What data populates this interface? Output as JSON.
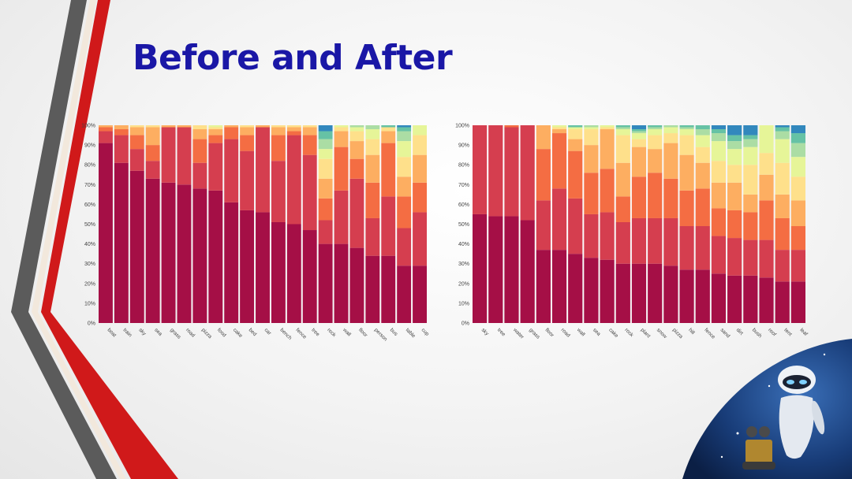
{
  "slide": {
    "title": "Before and After",
    "title_color": "#1a17a6",
    "decoration": "robot-illustration"
  },
  "palette": [
    "#a50f46",
    "#d53e4f",
    "#f46d43",
    "#fdae61",
    "#fee08b",
    "#e6f598",
    "#abdda4",
    "#66c2a5",
    "#3288bd"
  ],
  "chart_data": [
    {
      "type": "bar",
      "stacked": true,
      "title": "",
      "xlabel": "",
      "ylabel": "",
      "ylim": [
        0,
        100
      ],
      "yticks": [
        "0%",
        "10%",
        "20%",
        "30%",
        "40%",
        "50%",
        "60%",
        "70%",
        "80%",
        "90%",
        "100%"
      ],
      "categories": [
        "boat",
        "train",
        "sky",
        "sea",
        "grass",
        "road",
        "pizza",
        "food",
        "cake",
        "bed",
        "car",
        "bench",
        "fence",
        "tree",
        "rock",
        "wall",
        "floor",
        "person",
        "bus",
        "table",
        "cup"
      ],
      "series": [
        {
          "values": [
            91,
            81,
            77,
            73,
            71,
            70,
            68,
            67,
            61,
            57,
            56,
            51,
            50,
            47,
            40,
            40,
            38,
            34,
            34,
            29,
            29
          ]
        },
        {
          "values": [
            6,
            14,
            11,
            9,
            28,
            29,
            13,
            24,
            32,
            30,
            43,
            31,
            45,
            38,
            12,
            27,
            35,
            19,
            30,
            19,
            27
          ]
        },
        {
          "values": [
            2,
            3,
            7,
            8,
            0,
            0,
            12,
            4,
            6,
            8,
            0,
            13,
            2,
            10,
            11,
            22,
            10,
            18,
            27,
            16,
            15
          ]
        },
        {
          "values": [
            1,
            2,
            4,
            9,
            1,
            1,
            5,
            3,
            1,
            4,
            1,
            4,
            2,
            4,
            10,
            8,
            9,
            14,
            6,
            10,
            14
          ]
        },
        {
          "values": [
            0,
            0,
            1,
            1,
            0,
            0,
            2,
            1,
            0,
            1,
            0,
            1,
            1,
            1,
            10,
            2,
            5,
            8,
            2,
            10,
            10
          ]
        },
        {
          "values": [
            0,
            0,
            0,
            0,
            0,
            0,
            0,
            1,
            0,
            0,
            0,
            0,
            0,
            0,
            5,
            1,
            2,
            5,
            0,
            8,
            5
          ]
        },
        {
          "values": [
            0,
            0,
            0,
            0,
            0,
            0,
            0,
            0,
            0,
            0,
            0,
            0,
            0,
            0,
            5,
            0,
            1,
            2,
            0,
            5,
            0
          ]
        },
        {
          "values": [
            0,
            0,
            0,
            0,
            0,
            0,
            0,
            0,
            0,
            0,
            0,
            0,
            0,
            0,
            4,
            0,
            0,
            0,
            1,
            2,
            0
          ]
        },
        {
          "values": [
            0,
            0,
            0,
            0,
            0,
            0,
            0,
            0,
            0,
            0,
            0,
            0,
            0,
            0,
            3,
            0,
            0,
            0,
            0,
            1,
            0
          ]
        }
      ]
    },
    {
      "type": "bar",
      "stacked": true,
      "title": "",
      "xlabel": "",
      "ylabel": "",
      "ylim": [
        0,
        100
      ],
      "yticks": [
        "0%",
        "10%",
        "20%",
        "30%",
        "40%",
        "50%",
        "60%",
        "70%",
        "80%",
        "90%",
        "100%"
      ],
      "categories": [
        "sky",
        "tree",
        "water",
        "grass",
        "floor",
        "road",
        "wall",
        "sea",
        "cake",
        "rock",
        "plant",
        "snow",
        "pizza",
        "hill",
        "fence",
        "sand",
        "dirt",
        "bush",
        "roof",
        "tent",
        "leaf"
      ],
      "series": [
        {
          "values": [
            55,
            54,
            54,
            52,
            37,
            37,
            35,
            33,
            32,
            30,
            30,
            30,
            29,
            27,
            27,
            25,
            24,
            24,
            23,
            21,
            21
          ]
        },
        {
          "values": [
            45,
            46,
            45,
            48,
            25,
            31,
            28,
            22,
            24,
            21,
            23,
            23,
            24,
            22,
            22,
            19,
            19,
            18,
            19,
            16,
            16
          ]
        },
        {
          "values": [
            0,
            0,
            1,
            0,
            26,
            28,
            24,
            21,
            22,
            13,
            21,
            23,
            20,
            18,
            19,
            14,
            14,
            14,
            20,
            16,
            12
          ]
        },
        {
          "values": [
            0,
            0,
            0,
            0,
            12,
            2,
            6,
            14,
            20,
            17,
            15,
            12,
            18,
            18,
            13,
            13,
            14,
            9,
            13,
            12,
            13
          ]
        },
        {
          "values": [
            0,
            0,
            0,
            0,
            0,
            1,
            5,
            8,
            1,
            14,
            4,
            7,
            5,
            10,
            8,
            11,
            9,
            15,
            11,
            16,
            12
          ]
        },
        {
          "values": [
            0,
            0,
            0,
            0,
            0,
            1,
            1,
            1,
            1,
            3,
            3,
            3,
            3,
            3,
            6,
            10,
            8,
            9,
            14,
            12,
            10
          ]
        },
        {
          "values": [
            0,
            0,
            0,
            0,
            0,
            0,
            0,
            1,
            0,
            1,
            1,
            1,
            1,
            1,
            3,
            4,
            4,
            4,
            0,
            4,
            7
          ]
        },
        {
          "values": [
            0,
            0,
            0,
            0,
            0,
            0,
            1,
            0,
            0,
            1,
            1,
            1,
            0,
            1,
            2,
            2,
            3,
            2,
            0,
            2,
            5
          ]
        },
        {
          "values": [
            0,
            0,
            0,
            0,
            0,
            0,
            0,
            0,
            0,
            0,
            2,
            0,
            0,
            0,
            0,
            2,
            5,
            5,
            0,
            1,
            4
          ]
        }
      ]
    }
  ]
}
